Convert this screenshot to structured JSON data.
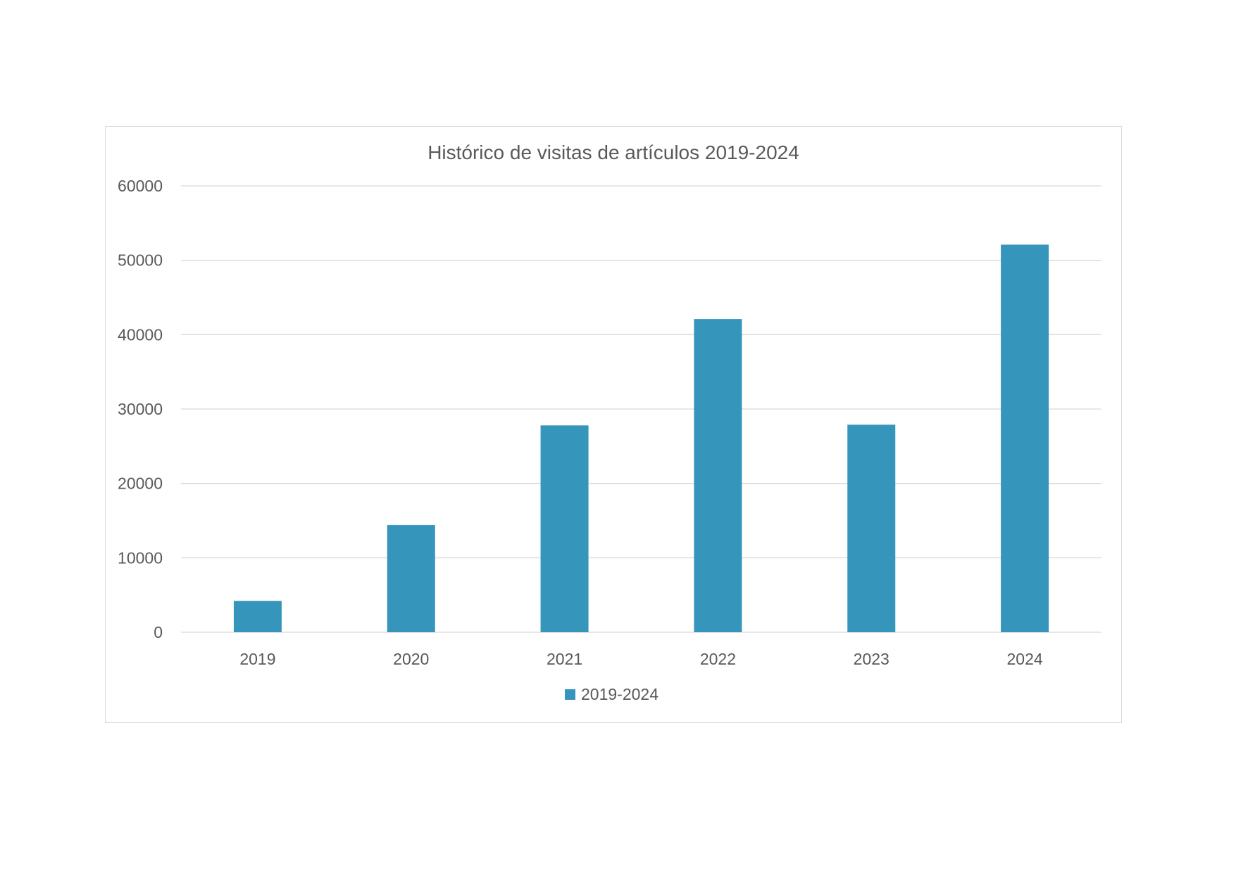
{
  "chart_data": {
    "type": "bar",
    "title": "Histórico de visitas de artículos 2019-2024",
    "xlabel": "",
    "ylabel": "",
    "categories": [
      "2019",
      "2020",
      "2021",
      "2022",
      "2023",
      "2024"
    ],
    "series": [
      {
        "name": "2019-2024",
        "values": [
          4200,
          14400,
          27800,
          42100,
          27900,
          52100
        ],
        "color": "#3595bb"
      }
    ],
    "ylim": [
      0,
      60000
    ],
    "yticks": [
      "0",
      "10000",
      "20000",
      "30000",
      "40000",
      "50000",
      "60000"
    ],
    "grid": true,
    "legend": "bottom",
    "colors": {
      "bar": "#3595bb",
      "grid": "#d9d9d9",
      "text": "#595959",
      "frame": "#d9d9d9"
    }
  }
}
